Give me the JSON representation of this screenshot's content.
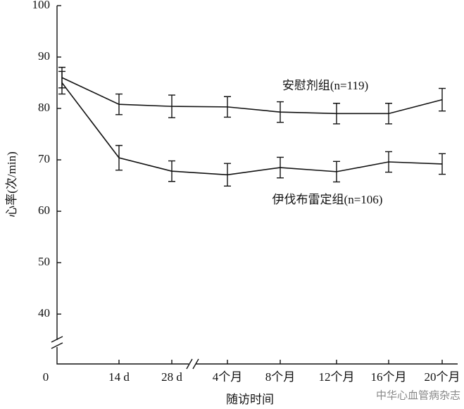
{
  "chart_data": {
    "type": "line",
    "y_label": "心率(次/min)",
    "x_label": "随访时间",
    "origin_label": "0",
    "categories": [
      null,
      "14 d",
      "28 d",
      "4个月",
      "8个月",
      "12个月",
      "16个月",
      "20个月"
    ],
    "series": [
      {
        "name": "安慰剂组(n=119)",
        "color": "#111111",
        "values": [
          86.0,
          80.8,
          80.4,
          80.3,
          79.3,
          79.0,
          79.0,
          81.7
        ],
        "errors": [
          2.0,
          2.0,
          2.2,
          2.0,
          2.0,
          2.0,
          2.0,
          2.2
        ]
      },
      {
        "name": "伊伐布雷定组(n=106)",
        "color": "#111111",
        "values": [
          85.0,
          70.4,
          67.8,
          67.1,
          68.5,
          67.7,
          69.6,
          69.2
        ],
        "errors": [
          2.2,
          2.4,
          2.0,
          2.2,
          2.0,
          2.0,
          2.0,
          2.0
        ]
      }
    ],
    "ylim": [
      30.3,
      100
    ],
    "yticks": [
      40,
      50,
      60,
      70,
      80,
      90,
      100
    ],
    "watermark": "中华心血管病杂志"
  }
}
